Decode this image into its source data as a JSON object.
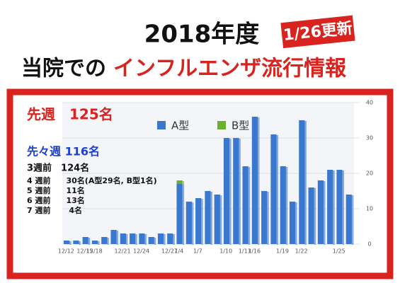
{
  "chart_data": {
    "type": "bar",
    "title": "2018年度",
    "stamp": "1/26更新",
    "subtitle_lead": "当院での",
    "subtitle_main": "インフルエンザ流行情報",
    "annotations": [
      "先週　125名",
      "先々週  116名",
      "3週前　124名",
      "4 週前　　30名(A型29名, B型1名)",
      "5 週前　　11名",
      "6 週前　　13名",
      "7 週前　　 4名"
    ],
    "categories": [
      "12/12",
      null,
      "12/15",
      "12/18",
      null,
      null,
      "12/21",
      null,
      "12/24",
      null,
      null,
      "12/27",
      "1/4",
      null,
      "1/7",
      null,
      null,
      "1/10",
      null,
      "1/13",
      "1/16",
      null,
      null,
      "1/19",
      null,
      "1/22",
      null,
      null,
      null,
      "1/25",
      null
    ],
    "series": [
      {
        "name": "A型",
        "color": "#3a78d0",
        "values": [
          1,
          1,
          2,
          1,
          2,
          4,
          3,
          3,
          3,
          2,
          3,
          3,
          17,
          12,
          13,
          15,
          14,
          30,
          30,
          22,
          36,
          15,
          31,
          22,
          12,
          35,
          16,
          18,
          21,
          21,
          14
        ]
      },
      {
        "name": "B型",
        "color": "#6ab22e",
        "values": [
          0,
          0,
          0,
          0,
          0,
          0,
          0,
          0,
          0,
          0,
          0,
          0,
          1,
          0,
          0,
          0,
          0,
          0,
          0,
          0,
          0,
          0,
          0,
          0,
          0,
          0,
          0,
          0,
          0,
          0,
          0
        ]
      }
    ],
    "ylim": [
      0,
      40
    ],
    "yticks": [
      0,
      10,
      20,
      30,
      40
    ],
    "stacked": true
  }
}
